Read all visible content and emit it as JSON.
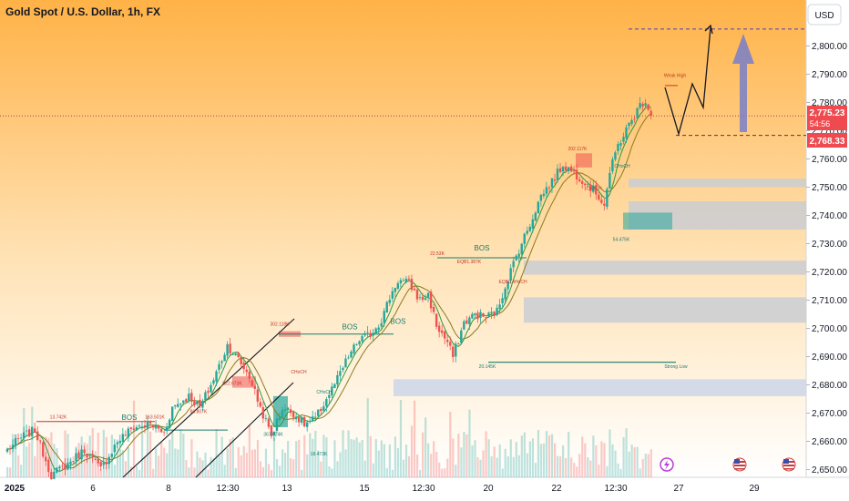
{
  "title": "Gold Spot / U.S. Dollar, 1h, FX",
  "currency_button": "USD",
  "current_price_tag": "2,775.23",
  "countdown_tag": "54:56",
  "level_price_tag": "2,768.33",
  "colors": {
    "bull": "#26a69a",
    "bear": "#ef5350",
    "ma": "#9c8b2d",
    "zone": "#c7ccd6",
    "lowzone": "#cfd7e8",
    "target_arrow": "#6f7bd0",
    "target_line": "#4b3fbf",
    "price_tag": "#ef4a4f",
    "trendline": "#131722",
    "bg_top": "#ffb247",
    "bg_bottom": "#ffffff"
  },
  "chart_data": {
    "type": "candlestick",
    "symbol": "XAUUSD",
    "interval": "1h",
    "x_ticks": [
      "2025",
      "6",
      "8",
      "12:30",
      "13",
      "15",
      "12:30",
      "20",
      "22",
      "12:30",
      "27",
      "29"
    ],
    "y_ticks": [
      "2,650.00",
      "2,660.00",
      "2,670.00",
      "2,680.00",
      "2,690.00",
      "2,700.00",
      "2,710.00",
      "2,720.00",
      "2,730.00",
      "2,740.00",
      "2,750.00",
      "2,760.00",
      "2,770.00",
      "2,780.00",
      "2,790.00",
      "2,800.00"
    ],
    "ylim": [
      2648,
      2814
    ],
    "anchors": [
      [
        0,
        2657
      ],
      [
        6,
        2662
      ],
      [
        10,
        2664
      ],
      [
        16,
        2648
      ],
      [
        22,
        2652
      ],
      [
        28,
        2657
      ],
      [
        34,
        2650
      ],
      [
        40,
        2660
      ],
      [
        46,
        2665
      ],
      [
        52,
        2666
      ],
      [
        57,
        2663
      ],
      [
        60,
        2672
      ],
      [
        66,
        2676
      ],
      [
        70,
        2672
      ],
      [
        75,
        2682
      ],
      [
        80,
        2694
      ],
      [
        84,
        2689
      ],
      [
        88,
        2683
      ],
      [
        92,
        2672
      ],
      [
        96,
        2662
      ],
      [
        100,
        2672
      ],
      [
        104,
        2670
      ],
      [
        108,
        2666
      ],
      [
        112,
        2668
      ],
      [
        116,
        2675
      ],
      [
        120,
        2682
      ],
      [
        124,
        2690
      ],
      [
        128,
        2696
      ],
      [
        132,
        2698
      ],
      [
        136,
        2703
      ],
      [
        139,
        2711
      ],
      [
        142,
        2717
      ],
      [
        146,
        2716
      ],
      [
        150,
        2710
      ],
      [
        153,
        2712
      ],
      [
        156,
        2701
      ],
      [
        160,
        2695
      ],
      [
        162,
        2690
      ],
      [
        166,
        2702
      ],
      [
        170,
        2705
      ],
      [
        174,
        2704
      ],
      [
        178,
        2706
      ],
      [
        182,
        2718
      ],
      [
        186,
        2728
      ],
      [
        190,
        2737
      ],
      [
        194,
        2747
      ],
      [
        198,
        2752
      ],
      [
        202,
        2758
      ],
      [
        206,
        2755
      ],
      [
        210,
        2752
      ],
      [
        214,
        2748
      ],
      [
        217,
        2744
      ],
      [
        219,
        2755
      ],
      [
        222,
        2765
      ],
      [
        226,
        2772
      ],
      [
        230,
        2779
      ],
      [
        232,
        2781
      ],
      [
        234,
        2775
      ]
    ],
    "annotations": {
      "bos": [
        "BOS",
        "BOS",
        "BOS",
        "BOS"
      ],
      "choch": [
        "CHoCH",
        "CHoCH",
        "CHoCH",
        "CHoCH"
      ],
      "labels": [
        "13.742K",
        "163.501K",
        "80.807K",
        "222.673K",
        "302.118K",
        "367.624K",
        "18.473K",
        "22.53K",
        "EQB1.387K",
        "EQB0.4HoCH",
        "202.117K",
        "54.475K",
        "20.145K",
        "Strong Low",
        "Weak High"
      ]
    },
    "levels": {
      "strong_low": 2688,
      "weak_high": 2786,
      "target": 2806,
      "stop_level": 2768.33,
      "current": 2775.23
    },
    "zones": [
      [
        2750,
        2753
      ],
      [
        2735,
        2745
      ],
      [
        2719,
        2724
      ],
      [
        2702,
        2711
      ]
    ],
    "lower_zone": [
      2676,
      2682
    ]
  }
}
